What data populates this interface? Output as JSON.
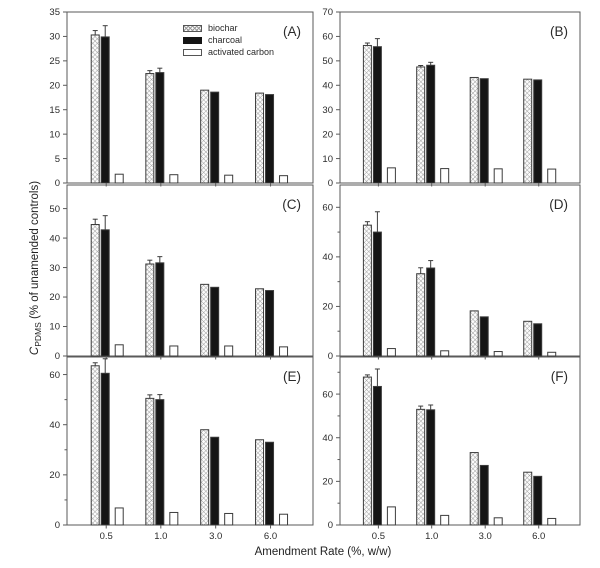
{
  "figure": {
    "x_axis_title": "Amendment Rate (%, w/w)",
    "y_axis_title": {
      "symbol": "C",
      "subscript": "PDMS",
      "rest": " (% of unamended controls)"
    },
    "legend": [
      {
        "name": "biochar",
        "style": "hatch"
      },
      {
        "name": "charcoal",
        "style": "solid"
      },
      {
        "name": "activated carbon",
        "style": "open"
      }
    ],
    "colors": {
      "background": "#ffffff",
      "axis": "#5a5a5a",
      "bar_outline": "#3c3c3c",
      "charcoal_fill": "#151515",
      "activated_carbon_fill": "#ffffff",
      "hatch_line": "#9a9a9a",
      "hatch_background": "#fbfbfb",
      "text": "#2b2b2b"
    }
  },
  "chart_data": {
    "type": "bar",
    "grid": false,
    "legend_position": "inside panel A, top center",
    "xlabel": "Amendment Rate (%, w/w)",
    "ylabel": "CPDMS (% of unamended controls)",
    "categories": [
      "0.5",
      "1.0",
      "3.0",
      "6.0"
    ],
    "series_names": [
      "biochar",
      "charcoal",
      "activated carbon"
    ],
    "panels": [
      {
        "label": "(A)",
        "ylim": [
          0,
          35
        ],
        "yticks": [
          0,
          5,
          10,
          15,
          20,
          25,
          30,
          35
        ],
        "minor_yticks": [],
        "series": [
          {
            "name": "biochar",
            "values": [
              30.3,
              22.4,
              19.0,
              18.4
            ],
            "errors": [
              0.9,
              0.6,
              0,
              0
            ]
          },
          {
            "name": "charcoal",
            "values": [
              29.9,
              22.6,
              18.6,
              18.1
            ],
            "errors": [
              2.3,
              0.9,
              0,
              0
            ]
          },
          {
            "name": "activated carbon",
            "values": [
              1.8,
              1.7,
              1.6,
              1.5
            ],
            "errors": [
              0,
              0,
              0,
              0
            ]
          }
        ]
      },
      {
        "label": "(B)",
        "ylim": [
          0,
          70
        ],
        "yticks": [
          0,
          10,
          20,
          30,
          40,
          50,
          60,
          70
        ],
        "minor_yticks": [],
        "series": [
          {
            "name": "biochar",
            "values": [
              56.3,
              47.5,
              43.2,
              42.5
            ],
            "errors": [
              1.0,
              0.6,
              0,
              0
            ]
          },
          {
            "name": "charcoal",
            "values": [
              55.8,
              48.2,
              42.7,
              42.2
            ],
            "errors": [
              3.3,
              1.2,
              0,
              0
            ]
          },
          {
            "name": "activated carbon",
            "values": [
              6.2,
              5.9,
              5.8,
              5.7
            ],
            "errors": [
              0,
              0,
              0,
              0
            ]
          }
        ]
      },
      {
        "label": "(C)",
        "ylim": [
          0,
          58
        ],
        "yticks": [
          0,
          10,
          20,
          30,
          40,
          50
        ],
        "minor_yticks": [],
        "series": [
          {
            "name": "biochar",
            "values": [
              44.6,
              31.2,
              24.3,
              22.8
            ],
            "errors": [
              1.8,
              1.3,
              0,
              0
            ]
          },
          {
            "name": "charcoal",
            "values": [
              42.8,
              31.6,
              23.3,
              22.2
            ],
            "errors": [
              4.8,
              2.1,
              0,
              0
            ]
          },
          {
            "name": "activated carbon",
            "values": [
              3.8,
              3.4,
              3.4,
              3.1
            ],
            "errors": [
              0,
              0,
              0,
              0
            ]
          }
        ]
      },
      {
        "label": "(D)",
        "ylim": [
          0,
          69
        ],
        "yticks": [
          0,
          20,
          40,
          60
        ],
        "minor_yticks": [
          10,
          30,
          50
        ],
        "series": [
          {
            "name": "biochar",
            "values": [
              52.8,
              33.2,
              18.2,
              14.0
            ],
            "errors": [
              1.4,
              2.4,
              0,
              0
            ]
          },
          {
            "name": "charcoal",
            "values": [
              50.0,
              35.5,
              15.8,
              13.0
            ],
            "errors": [
              8.2,
              3.0,
              0,
              0
            ]
          },
          {
            "name": "activated carbon",
            "values": [
              3.0,
              2.1,
              1.8,
              1.5
            ],
            "errors": [
              0,
              0,
              0,
              0
            ]
          }
        ]
      },
      {
        "label": "(E)",
        "ylim": [
          0,
          67
        ],
        "yticks": [
          0,
          20,
          40,
          60
        ],
        "minor_yticks": [
          10,
          30,
          50
        ],
        "series": [
          {
            "name": "biochar",
            "values": [
              63.5,
              50.5,
              38.0,
              34.0
            ],
            "errors": [
              1.2,
              1.4,
              0,
              0
            ]
          },
          {
            "name": "charcoal",
            "values": [
              60.5,
              50.0,
              35.0,
              33.0
            ],
            "errors": [
              5.8,
              2.0,
              0,
              0
            ]
          },
          {
            "name": "activated carbon",
            "values": [
              6.8,
              5.0,
              4.6,
              4.3
            ],
            "errors": [
              0,
              0,
              0,
              0
            ]
          }
        ]
      },
      {
        "label": "(F)",
        "ylim": [
          0,
          77
        ],
        "yticks": [
          0,
          20,
          40,
          60
        ],
        "minor_yticks": [
          10,
          30,
          50,
          70
        ],
        "series": [
          {
            "name": "biochar",
            "values": [
              67.8,
              53.0,
              33.2,
              24.2
            ],
            "errors": [
              1.0,
              1.5,
              0,
              0
            ]
          },
          {
            "name": "charcoal",
            "values": [
              63.5,
              52.8,
              27.3,
              22.3
            ],
            "errors": [
              8.0,
              2.2,
              0,
              0
            ]
          },
          {
            "name": "activated carbon",
            "values": [
              8.3,
              4.4,
              3.3,
              3.0
            ],
            "errors": [
              0,
              0,
              0,
              0
            ]
          }
        ]
      }
    ]
  }
}
